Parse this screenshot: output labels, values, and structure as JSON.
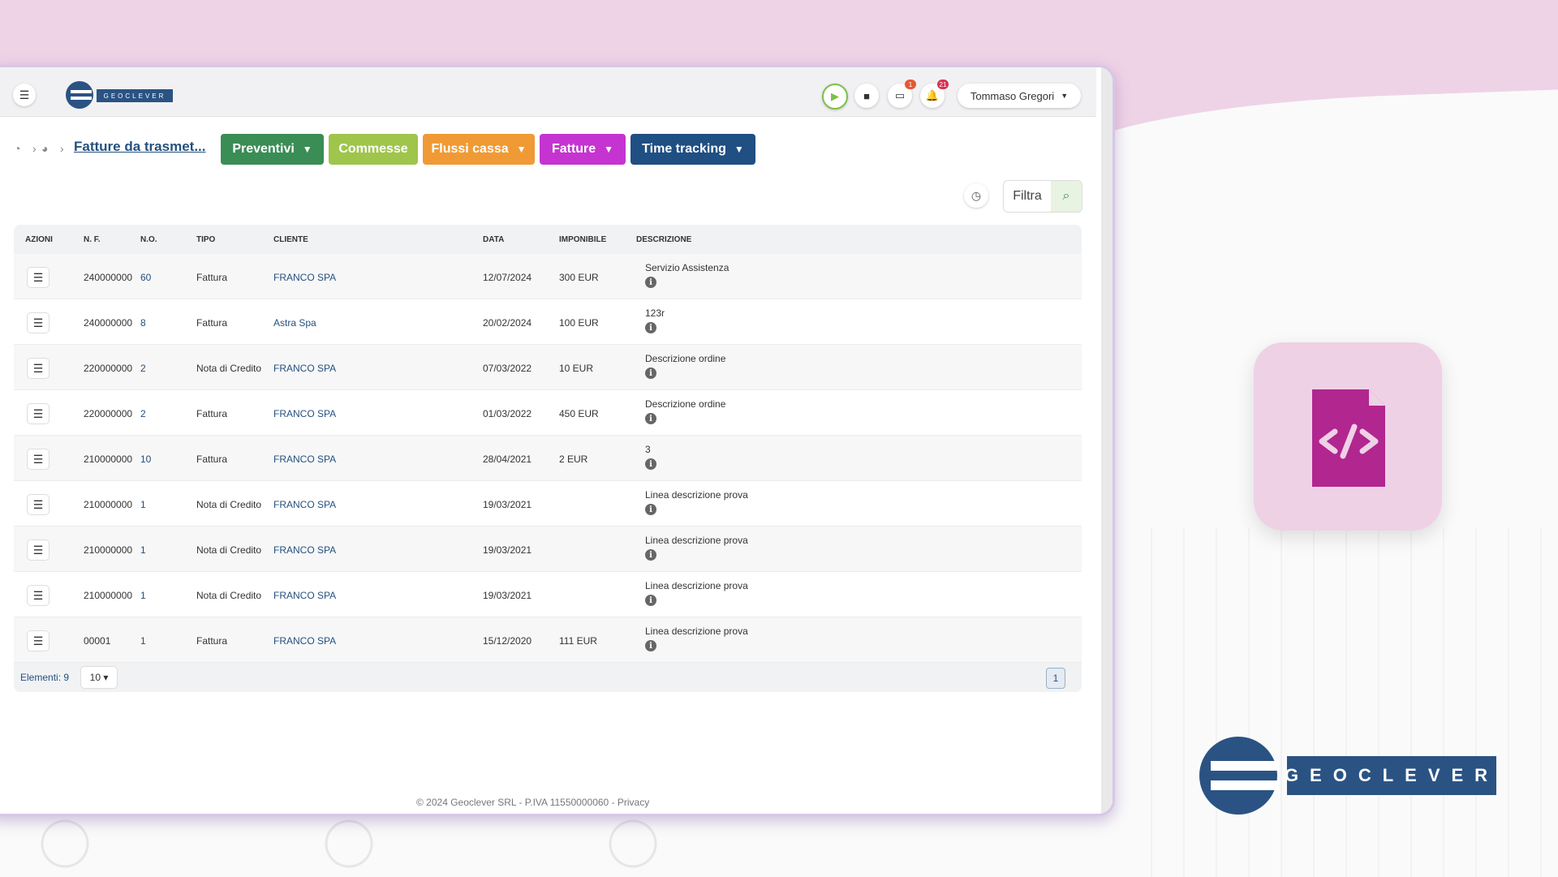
{
  "app": {
    "logo_text": "GEOCLEVER",
    "user_name": "Tommaso Gregori",
    "badges": {
      "tasks": "1",
      "notifications": "21"
    }
  },
  "breadcrumb": {
    "title": "Fatture da trasmet..."
  },
  "nav_pills": [
    {
      "label": "Preventivi",
      "color": "#3a8d55"
    },
    {
      "label": "Commesse",
      "color": "#9fc54c"
    },
    {
      "label": "Flussi cassa",
      "color": "#f09a35"
    },
    {
      "label": "Fatture",
      "color": "#c534d0"
    },
    {
      "label": "Time tracking",
      "color": "#1f4f83"
    }
  ],
  "filter": {
    "label": "Filtra"
  },
  "table": {
    "headers": [
      "AZIONI",
      "N. F.",
      "N.O.",
      "TIPO",
      "CLIENTE",
      "DATA",
      "IMPONIBILE",
      "DESCRIZIONE"
    ],
    "rows": [
      {
        "nf": "240000000",
        "no": "60",
        "tipo": "Fattura",
        "cliente": "FRANCO SPA",
        "data": "12/07/2024",
        "imponibile": "300 EUR",
        "descrizione": "Servizio Assistenza"
      },
      {
        "nf": "240000000",
        "no": "8",
        "tipo": "Fattura",
        "cliente": "Astra Spa",
        "data": "20/02/2024",
        "imponibile": "100 EUR",
        "descrizione": "123r"
      },
      {
        "nf": "220000000",
        "no": "2",
        "tipo": "Nota di Credito",
        "cliente": "FRANCO SPA",
        "data": "07/03/2022",
        "imponibile": "10 EUR",
        "descrizione": "Descrizione ordine"
      },
      {
        "nf": "220000000",
        "no": "2",
        "tipo": "Fattura",
        "cliente": "FRANCO SPA",
        "data": "01/03/2022",
        "imponibile": "450 EUR",
        "descrizione": "Descrizione ordine"
      },
      {
        "nf": "210000000",
        "no": "10",
        "tipo": "Fattura",
        "cliente": "FRANCO SPA",
        "data": "28/04/2021",
        "imponibile": "2 EUR",
        "descrizione": "3"
      },
      {
        "nf": "210000000",
        "no": "1",
        "tipo": "Nota di Credito",
        "cliente": "FRANCO SPA",
        "data": "19/03/2021",
        "imponibile": "",
        "descrizione": "Linea descrizione prova"
      },
      {
        "nf": "210000000",
        "no": "1",
        "tipo": "Nota di Credito",
        "cliente": "FRANCO SPA",
        "data": "19/03/2021",
        "imponibile": "",
        "descrizione": "Linea descrizione prova"
      },
      {
        "nf": "210000000",
        "no": "1",
        "tipo": "Nota di Credito",
        "cliente": "FRANCO SPA",
        "data": "19/03/2021",
        "imponibile": "",
        "descrizione": "Linea descrizione prova"
      },
      {
        "nf": "00001",
        "no": "1",
        "tipo": "Fattura",
        "cliente": "FRANCO SPA",
        "data": "15/12/2020",
        "imponibile": "111 EUR",
        "descrizione": "Linea descrizione prova"
      }
    ],
    "footer": {
      "count_label": "Elementi: 9",
      "page_size": "10",
      "current_page": "1"
    }
  },
  "footer_text": "© 2024 Geoclever SRL - P.IVA 11550000060 - Privacy",
  "brand": {
    "logo_text": "GEOCLEVER",
    "accent": "#2a5384",
    "tile_color": "#efd1e6",
    "file_icon_color": "#b1268f"
  }
}
